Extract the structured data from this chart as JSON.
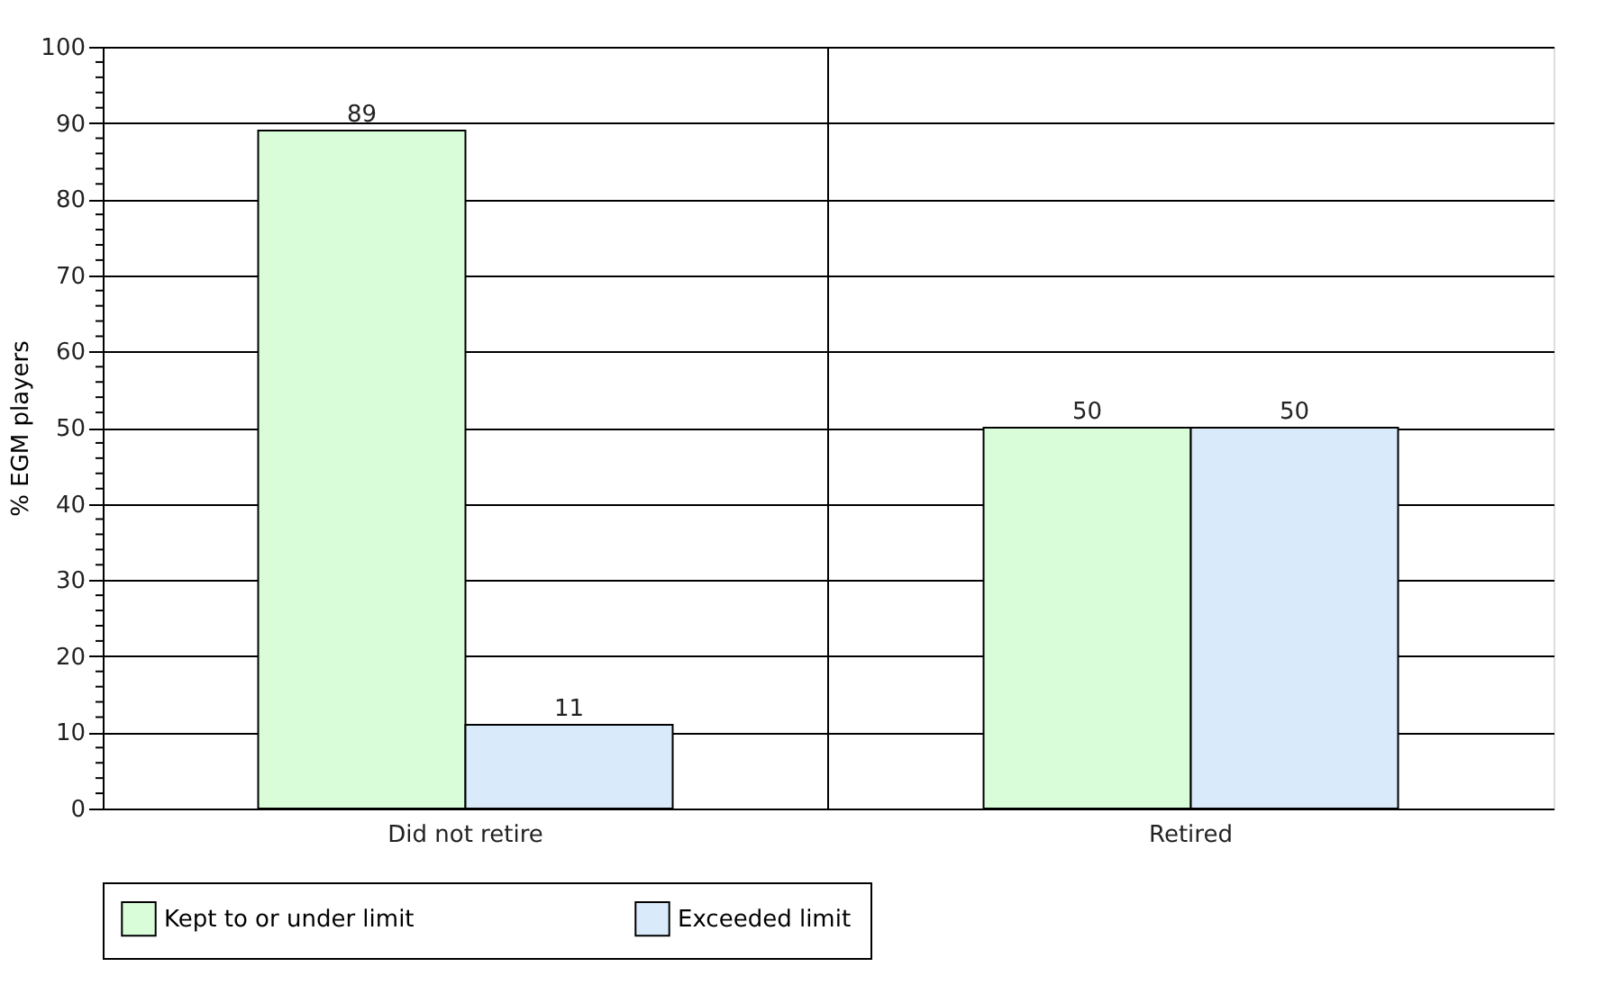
{
  "chart_data": {
    "type": "bar",
    "categories": [
      "Did not retire",
      "Retired"
    ],
    "ylabel": "% EGM players",
    "series": [
      {
        "name": "Kept to or under limit",
        "color": "#d9fdd9",
        "values": [
          89,
          50
        ]
      },
      {
        "name": "Exceeded limit",
        "color": "#d9eafb",
        "values": [
          11,
          50
        ]
      }
    ],
    "ylim": [
      0,
      100
    ],
    "yticks": [
      0,
      {
        "value": 2,
        "label": null
      },
      {
        "value": 4,
        "label": null
      },
      {
        "value": 6,
        "label": null
      },
      {
        "value": 8,
        "label": null
      },
      10,
      {
        "value": 12,
        "label": null
      },
      {
        "value": 14,
        "label": null
      },
      {
        "value": 16,
        "label": null
      },
      {
        "value": 18,
        "label": null
      },
      20,
      {
        "value": 22,
        "label": null
      },
      {
        "value": 24,
        "label": null
      },
      {
        "value": 26,
        "label": null
      },
      {
        "value": 28,
        "label": null
      },
      30,
      {
        "value": 32,
        "label": null
      },
      {
        "value": 34,
        "label": null
      },
      {
        "value": 36,
        "label": null
      },
      {
        "value": 38,
        "label": null
      },
      40,
      {
        "value": 42,
        "label": null
      },
      {
        "value": 44,
        "label": null
      },
      {
        "value": 46,
        "label": null
      },
      {
        "value": 48,
        "label": null
      },
      50,
      {
        "value": 52,
        "label": null
      },
      {
        "value": 54,
        "label": null
      },
      {
        "value": 56,
        "label": null
      },
      {
        "value": 58,
        "label": null
      },
      60,
      {
        "value": 62,
        "label": null
      },
      {
        "value": 64,
        "label": null
      },
      {
        "value": 66,
        "label": null
      },
      {
        "value": 68,
        "label": null
      },
      70,
      {
        "value": 72,
        "label": null
      },
      {
        "value": 74,
        "label": null
      },
      {
        "value": 76,
        "label": null
      },
      {
        "value": 78,
        "label": null
      },
      80,
      {
        "value": 82,
        "label": null
      },
      {
        "value": 84,
        "label": null
      },
      {
        "value": 86,
        "label": null
      },
      {
        "value": 88,
        "label": null
      },
      90,
      {
        "value": 92,
        "label": null
      },
      {
        "value": 94,
        "label": null
      },
      {
        "value": 96,
        "label": null
      },
      {
        "value": 98,
        "label": null
      },
      100
    ],
    "grid": true,
    "legend": "bottom",
    "data_labels": true
  }
}
